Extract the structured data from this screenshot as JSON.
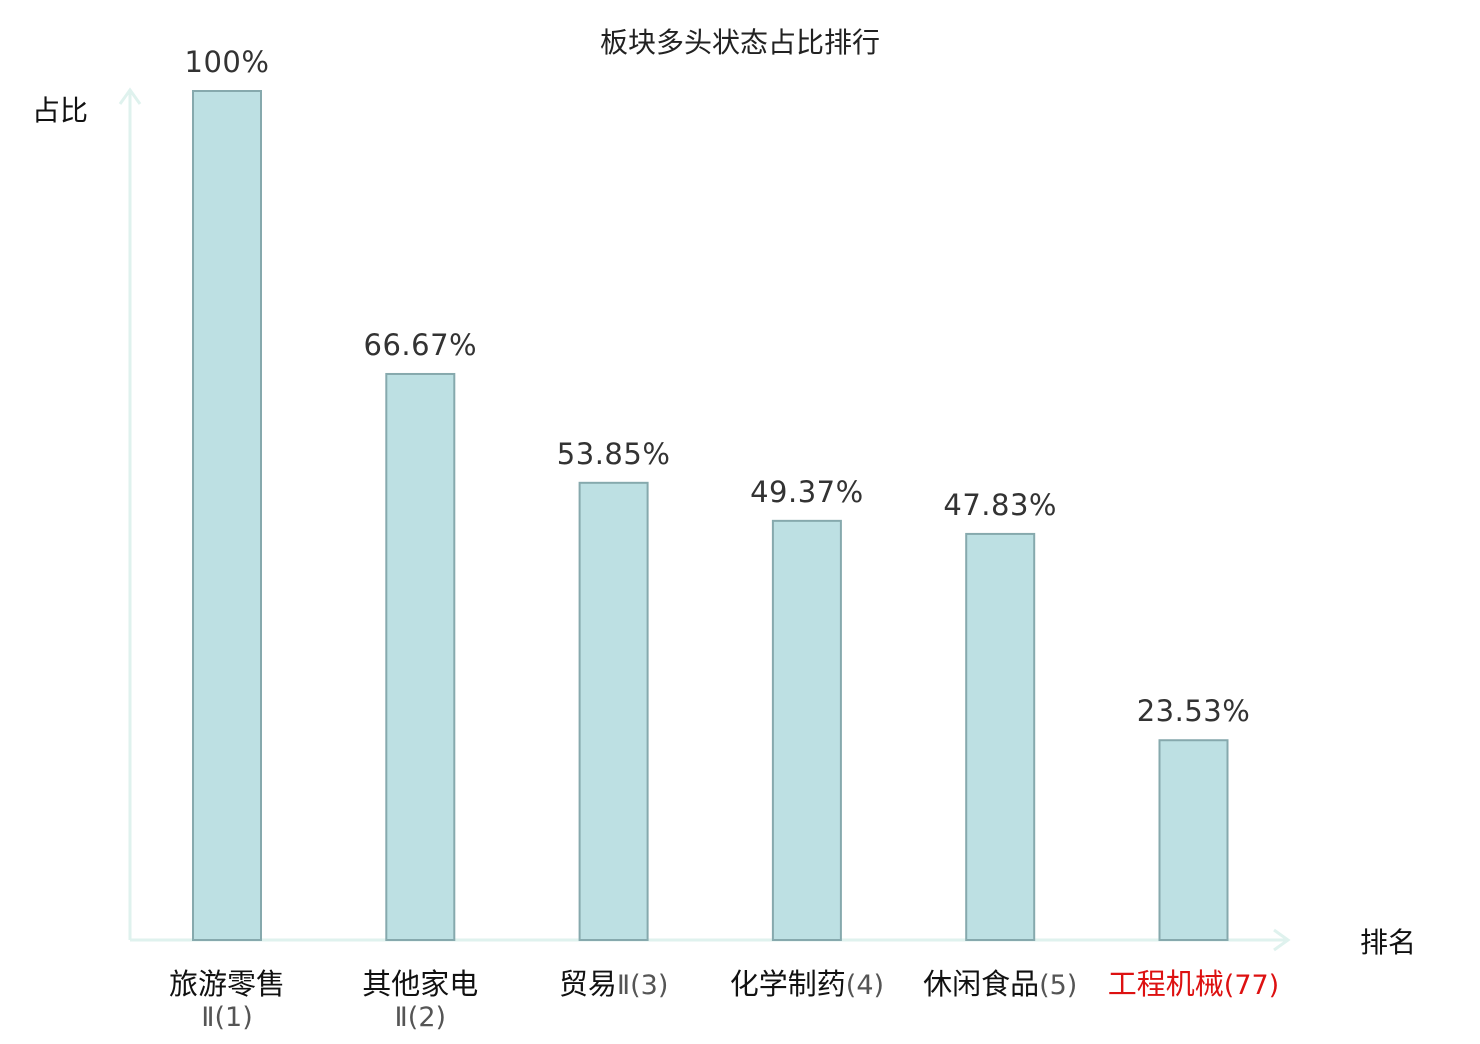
{
  "chart_data": {
    "type": "bar",
    "title": "板块多头状态占比排行",
    "xlabel": "排名",
    "ylabel": "占比",
    "ylim": [
      0,
      100
    ],
    "grid": false,
    "legend": "none",
    "categories": [
      {
        "name": "旅游零售",
        "rank": "Ⅱ(1)",
        "highlight": false
      },
      {
        "name": "其他家电",
        "rank": "Ⅱ(2)",
        "highlight": false
      },
      {
        "name": "贸易",
        "rank": "Ⅱ(3)",
        "highlight": false
      },
      {
        "name": "化学制药",
        "rank": "(4)",
        "highlight": false
      },
      {
        "name": "休闲食品",
        "rank": "(5)",
        "highlight": false
      },
      {
        "name": "工程机械",
        "rank": "(77)",
        "highlight": true
      }
    ],
    "values": [
      100,
      66.67,
      53.85,
      49.37,
      47.83,
      23.53
    ],
    "value_labels": [
      "100%",
      "66.67%",
      "53.85%",
      "49.37%",
      "47.83%",
      "23.53%"
    ]
  },
  "colors": {
    "bar_fill": "#bde0e3",
    "bar_stroke": "#86a9ad",
    "axis": "#dff2ee",
    "text": "#333333",
    "rank_text": "#555555",
    "highlight": "#dd1111"
  }
}
